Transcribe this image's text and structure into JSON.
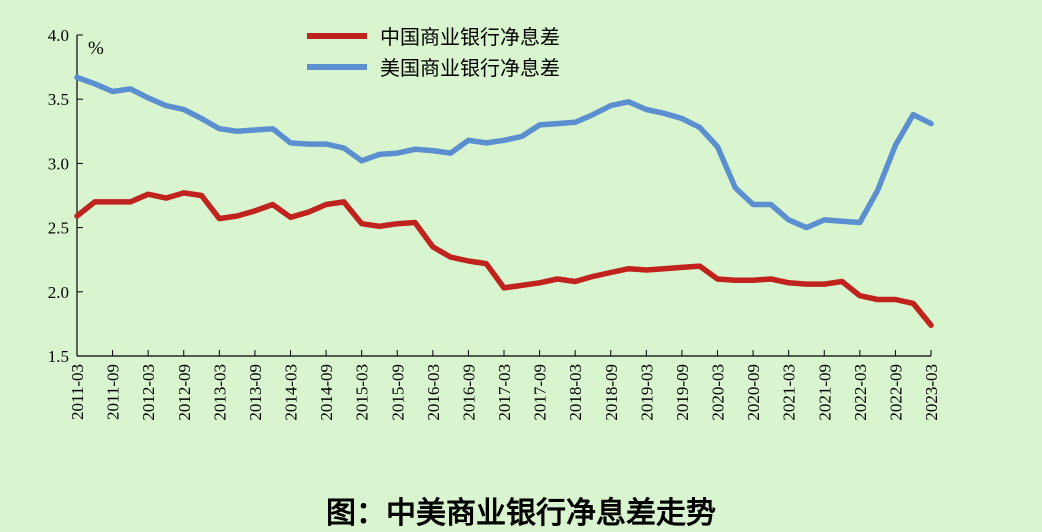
{
  "caption": "图：中美商业银行净息差走势",
  "chart_data": {
    "type": "line",
    "ylabel": "%",
    "ylim": [
      1.5,
      4.0
    ],
    "yticks": [
      "4.0",
      "3.5",
      "3.0",
      "2.5",
      "2.0",
      "1.5"
    ],
    "legend_position": "top-center",
    "x_labels": [
      "2011-03",
      "2011-09",
      "2012-03",
      "2012-09",
      "2013-03",
      "2013-09",
      "2014-03",
      "2014-09",
      "2015-03",
      "2015-09",
      "2016-03",
      "2016-09",
      "2017-03",
      "2017-09",
      "2018-03",
      "2018-09",
      "2019-03",
      "2019-09",
      "2020-03",
      "2020-09",
      "2021-03",
      "2021-09",
      "2022-03",
      "2022-09",
      "2023-03"
    ],
    "quarters": 49,
    "series": [
      {
        "name": "中国商业银行净息差",
        "color": "#c0231e",
        "values": [
          2.59,
          2.7,
          2.7,
          2.7,
          2.76,
          2.73,
          2.77,
          2.75,
          2.57,
          2.59,
          2.63,
          2.68,
          2.58,
          2.62,
          2.68,
          2.7,
          2.53,
          2.51,
          2.53,
          2.54,
          2.35,
          2.27,
          2.24,
          2.22,
          2.03,
          2.05,
          2.07,
          2.1,
          2.08,
          2.12,
          2.15,
          2.18,
          2.17,
          2.18,
          2.19,
          2.2,
          2.1,
          2.09,
          2.09,
          2.1,
          2.07,
          2.06,
          2.06,
          2.08,
          1.97,
          1.94,
          1.94,
          1.91,
          1.74
        ]
      },
      {
        "name": "美国商业银行净息差",
        "color": "#5b8fd0",
        "values": [
          3.67,
          3.62,
          3.56,
          3.58,
          3.51,
          3.45,
          3.42,
          3.35,
          3.27,
          3.25,
          3.26,
          3.27,
          3.16,
          3.15,
          3.15,
          3.12,
          3.02,
          3.07,
          3.08,
          3.11,
          3.1,
          3.08,
          3.18,
          3.16,
          3.18,
          3.21,
          3.3,
          3.31,
          3.32,
          3.38,
          3.45,
          3.48,
          3.42,
          3.39,
          3.35,
          3.28,
          3.13,
          2.81,
          2.68,
          2.68,
          2.56,
          2.5,
          2.56,
          2.55,
          2.54,
          2.79,
          3.14,
          3.38,
          3.31
        ]
      }
    ]
  }
}
